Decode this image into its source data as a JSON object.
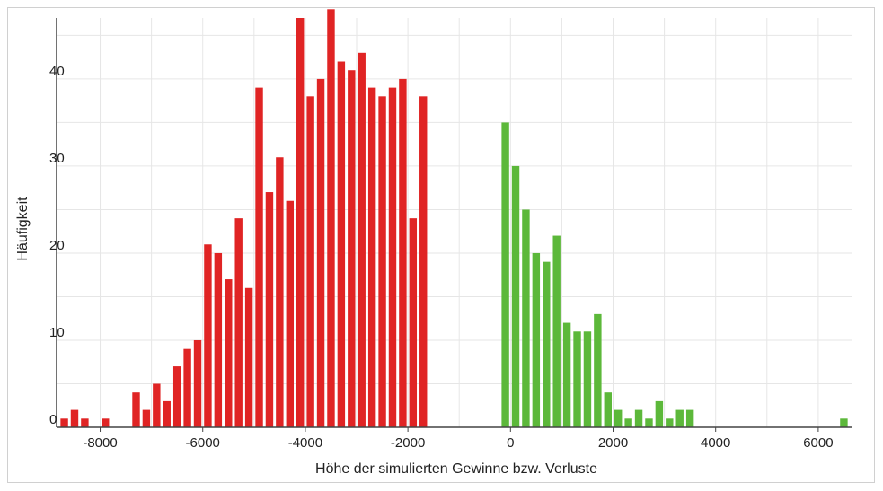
{
  "chart_data": {
    "type": "bar",
    "title": "",
    "xlabel": "Höhe der simulierten Gewinne bzw. Verluste",
    "ylabel": "Häufigkeit",
    "xlim": [
      -8850,
      6650
    ],
    "ylim": [
      0,
      47
    ],
    "x_ticks": [
      -8000,
      -6000,
      -4000,
      -2000,
      0,
      2000,
      4000,
      6000
    ],
    "x_tick_labels": [
      "-8000",
      "-6000",
      "-4000",
      "-2000",
      "0",
      "2000",
      "4000",
      "6000"
    ],
    "y_ticks": [
      0,
      10,
      20,
      30,
      40
    ],
    "y_tick_labels": [
      "0",
      "10",
      "20",
      "30",
      "40"
    ],
    "grid": true,
    "bin_width": 200,
    "colors": {
      "loss": "#e02424",
      "gain": "#5cb83a",
      "grid": "#e6e6e6",
      "axis": "#444444"
    },
    "series": [
      {
        "color": "#e02424",
        "x": [
          -8700,
          -8500,
          -8300,
          -7900,
          -7300,
          -7100,
          -6900,
          -6700,
          -6500,
          -6300,
          -6100,
          -5900,
          -5700,
          -5500,
          -5300,
          -5100,
          -4900,
          -4700,
          -4500,
          -4300,
          -4100,
          -3900,
          -3700,
          -3500,
          -3300,
          -3100,
          -2900,
          -2700,
          -2500,
          -2300,
          -2100,
          -1900,
          -1700,
          -1500,
          -1300,
          -1100,
          -900,
          -700,
          -500,
          -300
        ],
        "values": [
          1,
          2,
          1,
          1,
          4,
          2,
          5,
          3,
          7,
          9,
          10,
          21,
          20,
          17,
          24,
          16,
          39,
          27,
          31,
          26,
          47,
          38,
          40,
          48,
          42,
          41,
          43,
          39,
          38,
          39,
          40,
          24,
          38,
          0,
          0,
          0,
          0,
          0,
          0,
          0
        ]
      },
      {
        "color": "#5cb83a",
        "x": [
          -100,
          100,
          300,
          500,
          700,
          900,
          1100,
          1300,
          1500,
          1700,
          1900,
          2100,
          2300,
          2500,
          2700,
          2900,
          3100,
          3300,
          3500,
          3700,
          3900,
          4100,
          6500
        ],
        "values": [
          35,
          30,
          25,
          20,
          19,
          22,
          12,
          11,
          11,
          13,
          4,
          2,
          1,
          2,
          1,
          3,
          1,
          2,
          2,
          0,
          0,
          0,
          1
        ]
      }
    ]
  }
}
